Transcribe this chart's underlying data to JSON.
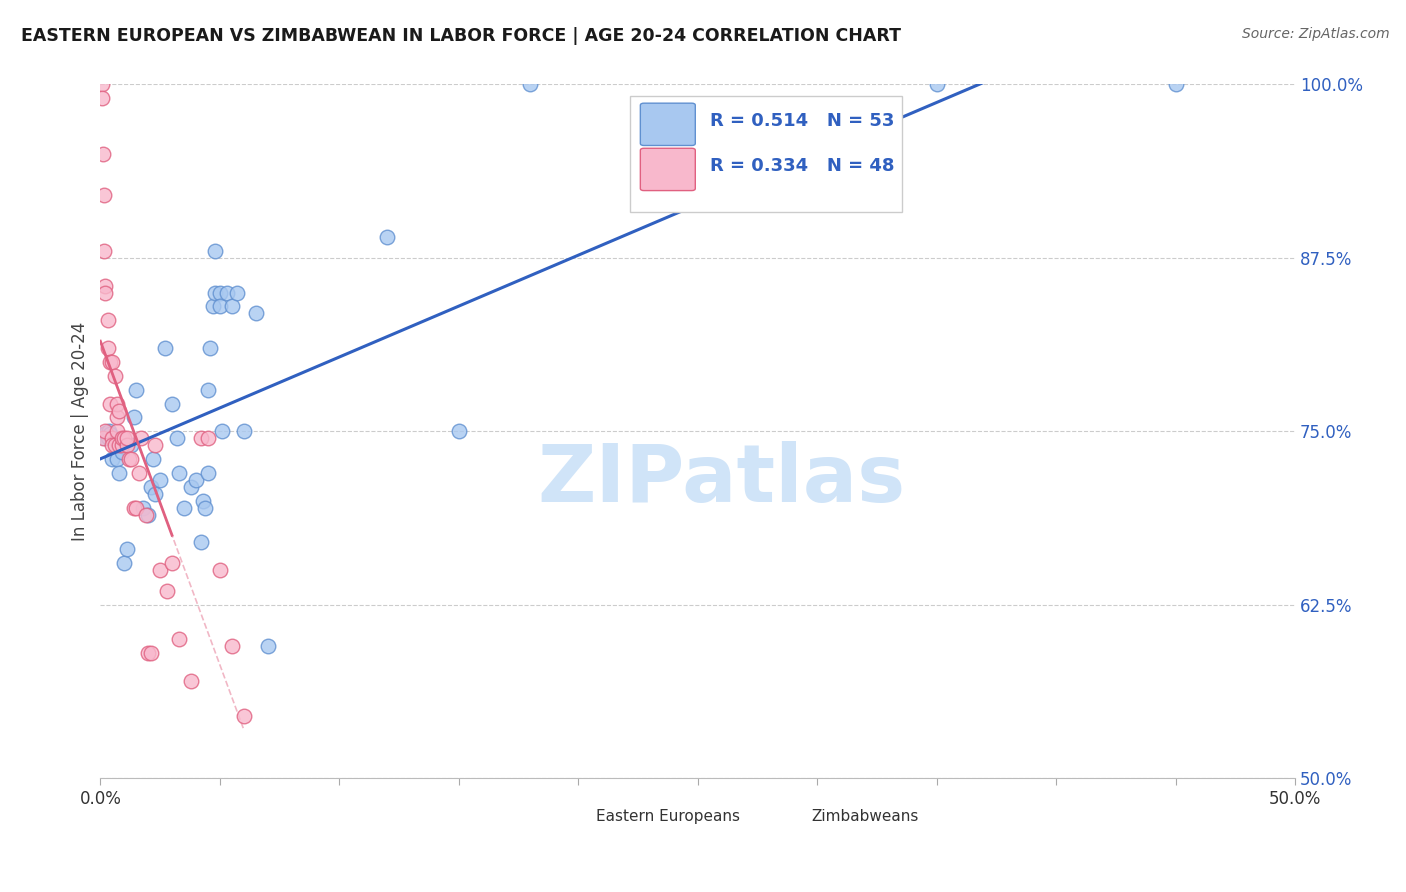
{
  "title": "EASTERN EUROPEAN VS ZIMBABWEAN IN LABOR FORCE | AGE 20-24 CORRELATION CHART",
  "source": "Source: ZipAtlas.com",
  "ylabel": "In Labor Force | Age 20-24",
  "xlim": [
    0.0,
    50.0
  ],
  "ylim": [
    50.0,
    100.0
  ],
  "xticks": [
    0.0,
    5.0,
    10.0,
    15.0,
    20.0,
    25.0,
    30.0,
    35.0,
    40.0,
    45.0,
    50.0
  ],
  "xticklabels": [
    "0.0%",
    "",
    "",
    "",
    "",
    "",
    "",
    "",
    "",
    "",
    "50.0%"
  ],
  "yticks": [
    50.0,
    62.5,
    75.0,
    87.5,
    100.0
  ],
  "yticklabels": [
    "50.0%",
    "62.5%",
    "75.0%",
    "87.5%",
    "100.0%"
  ],
  "blue_color": "#a8c8f0",
  "pink_color": "#f8b8cc",
  "blue_edge_color": "#6090d0",
  "pink_edge_color": "#e06080",
  "blue_line_color": "#3060c0",
  "pink_line_color": "#e06080",
  "grid_color": "#cccccc",
  "watermark_color": "#d0e4f8",
  "legend_R_blue": "R = 0.514",
  "legend_N_blue": "N = 53",
  "legend_R_pink": "R = 0.334",
  "legend_N_pink": "N = 48",
  "legend_label_blue": "Eastern Europeans",
  "legend_label_pink": "Zimbabweans",
  "blue_x": [
    0.1,
    0.15,
    0.2,
    0.25,
    0.3,
    0.35,
    0.4,
    0.5,
    0.7,
    0.75,
    0.8,
    0.9,
    1.0,
    1.1,
    1.3,
    1.4,
    1.5,
    1.8,
    2.0,
    2.1,
    2.2,
    2.3,
    2.5,
    2.7,
    3.0,
    3.2,
    3.3,
    3.5,
    3.8,
    4.0,
    4.2,
    4.3,
    4.4,
    4.5,
    4.5,
    4.6,
    4.7,
    4.8,
    4.8,
    5.0,
    5.0,
    5.1,
    5.3,
    5.5,
    5.7,
    6.0,
    6.5,
    7.0,
    12.0,
    15.0,
    18.0,
    35.0,
    45.0
  ],
  "blue_y": [
    74.7,
    74.8,
    74.5,
    74.9,
    74.6,
    75.0,
    74.8,
    73.0,
    73.0,
    74.0,
    72.0,
    73.5,
    65.5,
    66.5,
    74.0,
    76.0,
    78.0,
    69.5,
    69.0,
    71.0,
    73.0,
    70.5,
    71.5,
    81.0,
    77.0,
    74.5,
    72.0,
    69.5,
    71.0,
    71.5,
    67.0,
    70.0,
    69.5,
    72.0,
    78.0,
    81.0,
    84.0,
    88.0,
    85.0,
    85.0,
    84.0,
    75.0,
    85.0,
    84.0,
    85.0,
    75.0,
    83.5,
    59.5,
    89.0,
    75.0,
    100.0,
    100.0,
    100.0
  ],
  "pink_x": [
    0.05,
    0.05,
    0.1,
    0.1,
    0.15,
    0.15,
    0.2,
    0.2,
    0.2,
    0.3,
    0.3,
    0.4,
    0.4,
    0.5,
    0.5,
    0.5,
    0.6,
    0.6,
    0.7,
    0.7,
    0.7,
    0.8,
    0.8,
    0.9,
    0.9,
    1.0,
    1.1,
    1.1,
    1.2,
    1.3,
    1.4,
    1.5,
    1.6,
    1.7,
    1.9,
    2.0,
    2.1,
    2.3,
    2.5,
    2.8,
    3.0,
    3.3,
    3.8,
    4.2,
    4.5,
    5.0,
    5.5,
    6.0
  ],
  "pink_y": [
    100.0,
    99.0,
    95.0,
    74.5,
    92.0,
    88.0,
    85.5,
    85.0,
    75.0,
    83.0,
    81.0,
    80.0,
    77.0,
    74.5,
    74.0,
    80.0,
    79.0,
    74.0,
    75.0,
    76.0,
    77.0,
    74.0,
    76.5,
    74.0,
    74.5,
    74.5,
    74.0,
    74.5,
    73.0,
    73.0,
    69.5,
    69.5,
    72.0,
    74.5,
    69.0,
    59.0,
    59.0,
    74.0,
    65.0,
    63.5,
    65.5,
    60.0,
    57.0,
    74.5,
    74.5,
    65.0,
    59.5,
    54.5
  ]
}
